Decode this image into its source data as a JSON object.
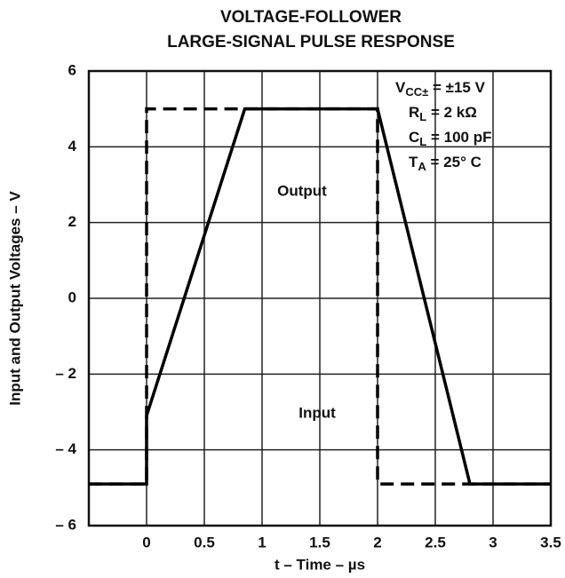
{
  "chart_data": {
    "type": "line",
    "title": [
      "VOLTAGE-FOLLOWER",
      "LARGE-SIGNAL PULSE RESPONSE"
    ],
    "x_label": "t – Time – µs",
    "y_label": "Input and Output Voltages – V",
    "xlim": [
      -0.5,
      3.5
    ],
    "xticks": [
      0,
      0.5,
      1,
      1.5,
      2,
      2.5,
      3,
      3.5
    ],
    "ylim": [
      -6,
      6
    ],
    "yticks": [
      {
        "value": -6,
        "label": "– 6"
      },
      {
        "value": -4,
        "label": "– 4"
      },
      {
        "value": -2,
        "label": "– 2"
      },
      0,
      2,
      4,
      6
    ],
    "grid": true,
    "series": [
      {
        "name": "Input",
        "color": "#000000",
        "dashed": true,
        "x": [
          -0.5,
          0,
          0,
          2,
          2,
          3.5
        ],
        "values": [
          -4.9,
          -4.9,
          5,
          5,
          -4.9,
          -4.9
        ]
      },
      {
        "name": "Output",
        "color": "#000000",
        "dashed": false,
        "x": [
          -0.5,
          0,
          0,
          0.85,
          2,
          2.8,
          3.5
        ],
        "values": [
          -4.9,
          -4.9,
          -3.1,
          5,
          5,
          -4.9,
          -4.9
        ]
      }
    ],
    "conditions": [
      {
        "main": "V",
        "sub": "CC±",
        "rest": " = ±15 V"
      },
      {
        "main": "R",
        "sub": "L",
        "rest": " = 2 kΩ"
      },
      {
        "main": "C",
        "sub": "L",
        "rest": " = 100 pF"
      },
      {
        "main": "T",
        "sub": "A",
        "rest": " = 25° C"
      }
    ]
  }
}
